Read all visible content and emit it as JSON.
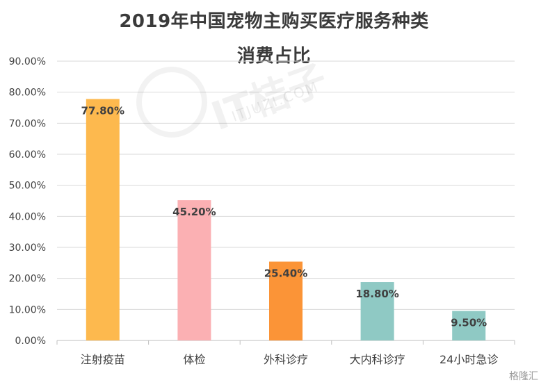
{
  "chart_data": {
    "type": "bar",
    "title_lines": [
      "2019年中国宠物主购买医疗服务种类",
      "消费占比"
    ],
    "categories": [
      "注射疫苗",
      "体检",
      "外科诊疗",
      "大内科诊疗",
      "24小时急诊"
    ],
    "values": [
      77.8,
      45.2,
      25.4,
      18.8,
      9.5
    ],
    "data_labels": [
      "77.80%",
      "45.20%",
      "25.40%",
      "18.80%",
      "9.50%"
    ],
    "bar_colors": [
      "#FDB94E",
      "#FBB0B3",
      "#FB9437",
      "#8FC9C4",
      "#8FC9C4"
    ],
    "ylim": [
      0,
      90
    ],
    "yticks": [
      0,
      10,
      20,
      30,
      40,
      50,
      60,
      70,
      80,
      90
    ],
    "ytick_labels": [
      "0.00%",
      "10.00%",
      "20.00%",
      "30.00%",
      "40.00%",
      "50.00%",
      "60.00%",
      "70.00%",
      "80.00%",
      "90.00%"
    ],
    "xlabel": "",
    "ylabel": "",
    "grid": true,
    "legend": "none",
    "gridline_color": "#D9D9D9",
    "tick_label_color": "#404040",
    "data_label_color": "#404040"
  },
  "watermark": {
    "text": "IT桔子",
    "subtext": "ITJUZI.COM"
  },
  "corner_brand": "格隆汇"
}
